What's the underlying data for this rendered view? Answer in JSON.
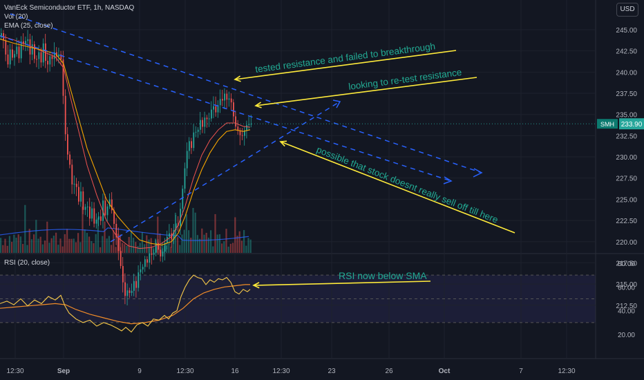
{
  "header": {
    "symbol_line": "VanEck Semiconductor ETF, 1h, NASDAQ",
    "vol_label": "Vol (20)",
    "ema_label": "EMA (25, close)",
    "currency_button": "USD"
  },
  "rsi_pane": {
    "label": "RSI (20, close)"
  },
  "price_tag": {
    "ticker": "SMH",
    "value": "233.90"
  },
  "annotations": [
    "tested resistance and failed to breakthrough",
    "looking to re-test resistance",
    "possible that stock doesnt really sell off till here",
    "RSI now below SMA"
  ],
  "colors": {
    "background": "#131722",
    "up": "#26a69a",
    "down": "#ef5350",
    "ema": "#f7a600",
    "sma_overlay": "#ef5350",
    "trendline": "#2962ff",
    "arrow": "#ffeb3b",
    "annotation_text": "#22ab94",
    "rsi": "#f7c948",
    "rsi_sma": "#f28c28",
    "rsi_band": "#1e1f3a"
  },
  "chart_data": [
    {
      "type": "candlestick",
      "price_axis": {
        "ticks": [
          "245.00",
          "242.50",
          "240.00",
          "237.50",
          "235.00",
          "232.50",
          "230.00",
          "227.50",
          "225.00",
          "222.50",
          "220.00",
          "217.50",
          "215.00",
          "212.50"
        ],
        "ylim": [
          211.5,
          246.5
        ]
      },
      "time_axis": {
        "ticks": [
          "12:30",
          "Sep",
          "9",
          "12:30",
          "16",
          "12:30",
          "23",
          "26",
          "Oct",
          "7",
          "12:30"
        ]
      },
      "price_path": [
        [
          0,
          244.2
        ],
        [
          4,
          244.8
        ],
        [
          8,
          242.5
        ],
        [
          12,
          240.8
        ],
        [
          16,
          243.0
        ],
        [
          20,
          241.0
        ],
        [
          24,
          243.5
        ],
        [
          28,
          241.5
        ],
        [
          32,
          244.0
        ],
        [
          36,
          243.0
        ],
        [
          40,
          244.5
        ],
        [
          44,
          242.0
        ],
        [
          48,
          243.5
        ],
        [
          52,
          240.5
        ],
        [
          56,
          242.8
        ],
        [
          60,
          241.0
        ],
        [
          64,
          243.8
        ],
        [
          68,
          240.0
        ],
        [
          72,
          242.0
        ],
        [
          76,
          241.5
        ],
        [
          80,
          242.5
        ],
        [
          84,
          241.5
        ],
        [
          88,
          242.8
        ],
        [
          92,
          237.5
        ],
        [
          95,
          233.0
        ],
        [
          98,
          230.5
        ],
        [
          102,
          229.0
        ],
        [
          106,
          226.0
        ],
        [
          110,
          227.5
        ],
        [
          114,
          224.5
        ],
        [
          118,
          226.0
        ],
        [
          122,
          223.0
        ],
        [
          126,
          225.0
        ],
        [
          130,
          222.5
        ],
        [
          134,
          224.0
        ],
        [
          138,
          221.5
        ],
        [
          142,
          223.5
        ],
        [
          146,
          222.0
        ],
        [
          150,
          225.0
        ],
        [
          154,
          222.5
        ],
        [
          158,
          225.5
        ],
        [
          162,
          224.0
        ],
        [
          166,
          222.0
        ],
        [
          170,
          220.0
        ],
        [
          174,
          218.0
        ],
        [
          178,
          215.5
        ],
        [
          182,
          213.5
        ],
        [
          186,
          214.5
        ],
        [
          190,
          213.5
        ],
        [
          194,
          215.5
        ],
        [
          198,
          214.5
        ],
        [
          202,
          217.0
        ],
        [
          206,
          216.5
        ],
        [
          210,
          218.0
        ],
        [
          214,
          217.5
        ],
        [
          218,
          219.0
        ],
        [
          222,
          218.0
        ],
        [
          226,
          220.0
        ],
        [
          230,
          219.0
        ],
        [
          234,
          218.0
        ],
        [
          238,
          219.5
        ],
        [
          242,
          220.5
        ],
        [
          246,
          221.0
        ],
        [
          250,
          220.0
        ],
        [
          254,
          222.5
        ],
        [
          258,
          221.5
        ],
        [
          262,
          224.0
        ],
        [
          266,
          227.0
        ],
        [
          270,
          230.0
        ],
        [
          274,
          232.0
        ],
        [
          278,
          231.0
        ],
        [
          282,
          233.5
        ],
        [
          286,
          232.5
        ],
        [
          290,
          234.5
        ],
        [
          294,
          233.5
        ],
        [
          298,
          235.0
        ],
        [
          302,
          234.0
        ],
        [
          306,
          235.5
        ],
        [
          310,
          236.0
        ],
        [
          314,
          235.0
        ],
        [
          318,
          237.0
        ],
        [
          322,
          236.5
        ],
        [
          326,
          237.5
        ],
        [
          330,
          236.5
        ],
        [
          334,
          237.2
        ],
        [
          338,
          235.0
        ],
        [
          342,
          233.5
        ],
        [
          346,
          233.0
        ],
        [
          350,
          232.2
        ],
        [
          354,
          233.0
        ],
        [
          358,
          233.8
        ],
        [
          362,
          233.9
        ]
      ],
      "ema_25_path": [
        [
          0,
          243.9
        ],
        [
          20,
          243.4
        ],
        [
          40,
          243.0
        ],
        [
          60,
          242.6
        ],
        [
          80,
          242.2
        ],
        [
          92,
          241.0
        ],
        [
          102,
          238.0
        ],
        [
          114,
          234.5
        ],
        [
          126,
          231.0
        ],
        [
          140,
          228.0
        ],
        [
          154,
          225.0
        ],
        [
          170,
          223.0
        ],
        [
          186,
          221.5
        ],
        [
          202,
          220.2
        ],
        [
          218,
          219.8
        ],
        [
          234,
          219.6
        ],
        [
          248,
          220.0
        ],
        [
          258,
          221.0
        ],
        [
          268,
          223.0
        ],
        [
          280,
          226.0
        ],
        [
          292,
          228.5
        ],
        [
          304,
          230.5
        ],
        [
          316,
          232.0
        ],
        [
          328,
          233.0
        ],
        [
          340,
          233.2
        ],
        [
          352,
          233.0
        ],
        [
          362,
          233.2
        ]
      ],
      "overlay_line_path": [
        [
          0,
          244.3
        ],
        [
          20,
          243.8
        ],
        [
          40,
          243.2
        ],
        [
          60,
          242.5
        ],
        [
          80,
          241.8
        ],
        [
          92,
          240.5
        ],
        [
          102,
          237.0
        ],
        [
          114,
          233.0
        ],
        [
          126,
          229.0
        ],
        [
          140,
          225.5
        ],
        [
          154,
          222.5
        ],
        [
          170,
          220.5
        ],
        [
          186,
          219.5
        ],
        [
          202,
          219.2
        ],
        [
          218,
          219.3
        ],
        [
          234,
          219.8
        ],
        [
          248,
          220.6
        ],
        [
          258,
          222.0
        ],
        [
          268,
          224.2
        ],
        [
          280,
          227.5
        ],
        [
          292,
          230.2
        ],
        [
          304,
          232.0
        ],
        [
          316,
          233.2
        ],
        [
          328,
          234.0
        ],
        [
          340,
          234.0
        ],
        [
          352,
          233.6
        ],
        [
          362,
          233.5
        ]
      ],
      "volume_pane": {
        "label": "Vol (20)"
      }
    },
    {
      "type": "line",
      "title": "RSI (20, close)",
      "ylim": [
        15,
        82
      ],
      "yticks": [
        "80.00",
        "60.00",
        "40.00",
        "20.00"
      ],
      "band": [
        30,
        70
      ],
      "rsi_path": [
        [
          0,
          46
        ],
        [
          10,
          48
        ],
        [
          20,
          45
        ],
        [
          30,
          50
        ],
        [
          40,
          44
        ],
        [
          50,
          49
        ],
        [
          60,
          46
        ],
        [
          70,
          52
        ],
        [
          80,
          49
        ],
        [
          88,
          53
        ],
        [
          94,
          44
        ],
        [
          100,
          38
        ],
        [
          110,
          33
        ],
        [
          120,
          30
        ],
        [
          130,
          32
        ],
        [
          140,
          27
        ],
        [
          150,
          30
        ],
        [
          160,
          28
        ],
        [
          170,
          25
        ],
        [
          176,
          23
        ],
        [
          182,
          26
        ],
        [
          190,
          22
        ],
        [
          198,
          28
        ],
        [
          206,
          30
        ],
        [
          214,
          27
        ],
        [
          222,
          33
        ],
        [
          230,
          32
        ],
        [
          238,
          36
        ],
        [
          244,
          33
        ],
        [
          250,
          38
        ],
        [
          256,
          40
        ],
        [
          262,
          52
        ],
        [
          268,
          60
        ],
        [
          274,
          66
        ],
        [
          280,
          70
        ],
        [
          286,
          68
        ],
        [
          292,
          67
        ],
        [
          298,
          62
        ],
        [
          304,
          66
        ],
        [
          310,
          64
        ],
        [
          316,
          67
        ],
        [
          322,
          66
        ],
        [
          328,
          68
        ],
        [
          334,
          64
        ],
        [
          340,
          56
        ],
        [
          346,
          54
        ],
        [
          352,
          58
        ],
        [
          358,
          56
        ],
        [
          362,
          58
        ]
      ],
      "sma_path": [
        [
          0,
          42
        ],
        [
          20,
          43
        ],
        [
          40,
          44
        ],
        [
          60,
          45
        ],
        [
          80,
          46
        ],
        [
          95,
          45
        ],
        [
          110,
          41
        ],
        [
          130,
          37
        ],
        [
          150,
          34
        ],
        [
          170,
          31
        ],
        [
          190,
          29
        ],
        [
          210,
          30
        ],
        [
          230,
          32
        ],
        [
          250,
          36
        ],
        [
          265,
          42
        ],
        [
          280,
          50
        ],
        [
          295,
          55
        ],
        [
          310,
          58
        ],
        [
          325,
          60
        ],
        [
          340,
          61
        ],
        [
          355,
          62
        ],
        [
          362,
          62
        ]
      ]
    }
  ]
}
